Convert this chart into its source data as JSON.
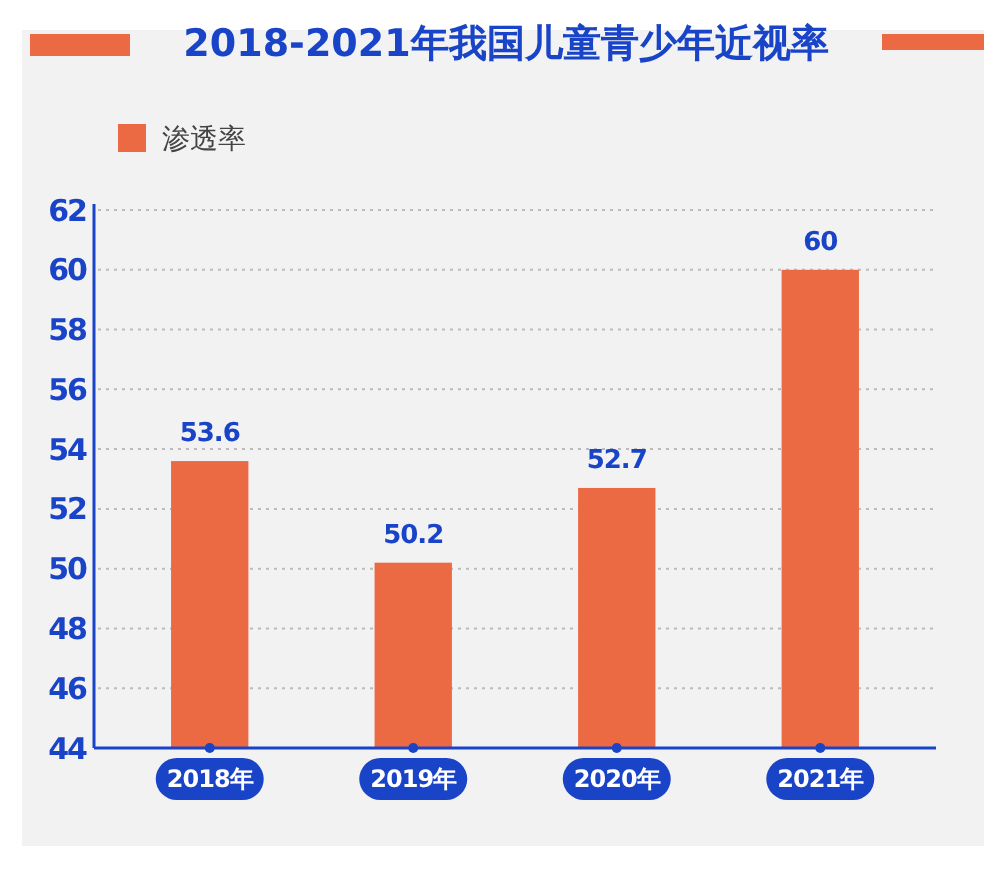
{
  "chart_data": {
    "type": "bar",
    "title": "2018-2021年我国儿童青少年近视率",
    "categories": [
      "2018年",
      "2019年",
      "2020年",
      "2021年"
    ],
    "series": [
      {
        "name": "渗透率",
        "color": "#ec6a43",
        "values": [
          53.6,
          50.2,
          52.7,
          60
        ]
      }
    ],
    "ylim": [
      44,
      62
    ],
    "yticks": [
      44,
      46,
      48,
      50,
      52,
      54,
      56,
      58,
      60,
      62
    ],
    "grid": "y",
    "legend": "top left",
    "data_labels": true
  }
}
